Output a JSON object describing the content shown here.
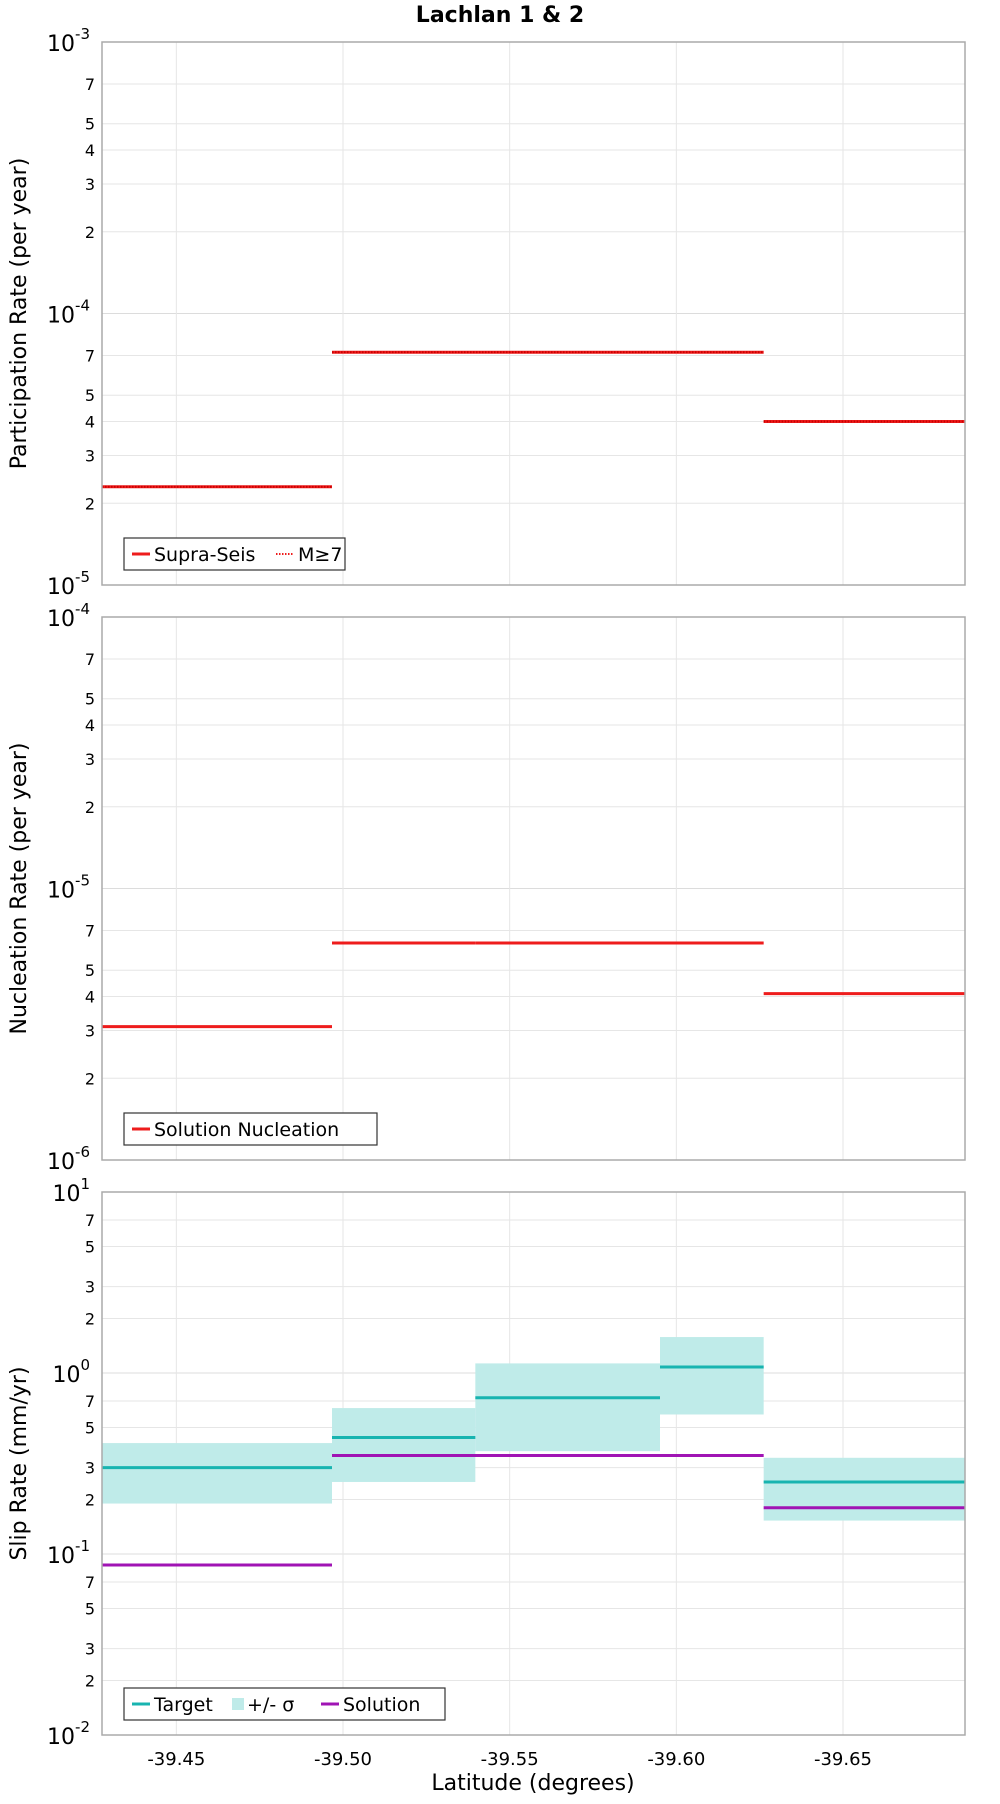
{
  "title": "Lachlan 1 & 2",
  "x_axis": {
    "label": "Latitude (degrees)",
    "range": [
      -39.4277,
      -39.6866
    ],
    "ticks": [
      -39.45,
      -39.5,
      -39.55,
      -39.6,
      -39.65
    ],
    "tick_labels": [
      "-39.45",
      "-39.50",
      "-39.55",
      "-39.60",
      "-39.65"
    ]
  },
  "colors": {
    "red": "#ee1c1c",
    "teal": "#18b4b0",
    "band": "#bfebe9",
    "purple": "#a014b4",
    "grid": "#e6e6e6",
    "frame": "#aaaaaa"
  },
  "chart_data": [
    {
      "type": "line",
      "style": "step",
      "panel": "participation",
      "ylabel": "Participation Rate (per year)",
      "yscale": "log",
      "ylim": [
        1e-05,
        0.001
      ],
      "decades": [
        {
          "base": "10",
          "exp": "-5",
          "value": 1e-05
        },
        {
          "base": "10",
          "exp": "-4",
          "value": 0.0001
        },
        {
          "base": "10",
          "exp": "-3",
          "value": 0.001
        }
      ],
      "minor_ticks": [
        {
          "label": "2",
          "value": 2e-05
        },
        {
          "label": "3",
          "value": 3e-05
        },
        {
          "label": "4",
          "value": 4e-05
        },
        {
          "label": "5",
          "value": 5e-05
        },
        {
          "label": "7",
          "value": 7e-05
        },
        {
          "label": "2",
          "value": 0.0002
        },
        {
          "label": "3",
          "value": 0.0003
        },
        {
          "label": "4",
          "value": 0.0004
        },
        {
          "label": "5",
          "value": 0.0005
        },
        {
          "label": "7",
          "value": 0.0007
        }
      ],
      "legend": {
        "entries": [
          {
            "name": "Supra-Seis",
            "style": "solid",
            "color": "#ee1c1c"
          },
          {
            "name": "M≥7",
            "style": "dotted",
            "color": "#ee1c1c"
          }
        ]
      },
      "series": [
        {
          "name": "Supra-Seis",
          "color": "#ee1c1c",
          "segments": [
            {
              "x0": -39.4277,
              "x1": -39.4967,
              "y": 2.3e-05
            },
            {
              "x0": -39.4967,
              "x1": -39.6262,
              "y": 7.2e-05
            },
            {
              "x0": -39.6262,
              "x1": -39.6866,
              "y": 4e-05
            }
          ]
        },
        {
          "name": "M≥7",
          "color": "#ee1c1c",
          "dotted": true,
          "segments": [
            {
              "x0": -39.4277,
              "x1": -39.4967,
              "y": 2.3e-05
            },
            {
              "x0": -39.4967,
              "x1": -39.6262,
              "y": 7.2e-05
            },
            {
              "x0": -39.6262,
              "x1": -39.6866,
              "y": 4e-05
            }
          ]
        }
      ]
    },
    {
      "type": "line",
      "style": "step",
      "panel": "nucleation",
      "ylabel": "Nucleation Rate (per year)",
      "yscale": "log",
      "ylim": [
        1e-06,
        0.0001
      ],
      "decades": [
        {
          "base": "10",
          "exp": "-6",
          "value": 1e-06
        },
        {
          "base": "10",
          "exp": "-5",
          "value": 1e-05
        },
        {
          "base": "10",
          "exp": "-4",
          "value": 0.0001
        }
      ],
      "minor_ticks": [
        {
          "label": "2",
          "value": 2e-06
        },
        {
          "label": "3",
          "value": 3e-06
        },
        {
          "label": "4",
          "value": 4e-06
        },
        {
          "label": "5",
          "value": 5e-06
        },
        {
          "label": "7",
          "value": 7e-06
        },
        {
          "label": "2",
          "value": 2e-05
        },
        {
          "label": "3",
          "value": 3e-05
        },
        {
          "label": "4",
          "value": 4e-05
        },
        {
          "label": "5",
          "value": 5e-05
        },
        {
          "label": "7",
          "value": 7e-05
        }
      ],
      "legend": {
        "entries": [
          {
            "name": "Solution Nucleation",
            "style": "solid",
            "color": "#ee1c1c"
          }
        ]
      },
      "series": [
        {
          "name": "Solution Nucleation",
          "color": "#ee1c1c",
          "segments": [
            {
              "x0": -39.4277,
              "x1": -39.4967,
              "y": 3.1e-06
            },
            {
              "x0": -39.4967,
              "x1": -39.5397,
              "y": 6.3e-06
            },
            {
              "x0": -39.5397,
              "x1": -39.5951,
              "y": 6.3e-06
            },
            {
              "x0": -39.5951,
              "x1": -39.6262,
              "y": 6.3e-06
            },
            {
              "x0": -39.6262,
              "x1": -39.6866,
              "y": 4.1e-06
            }
          ]
        }
      ]
    },
    {
      "type": "line",
      "style": "step",
      "panel": "slip",
      "ylabel": "Slip Rate (mm/yr)",
      "yscale": "log",
      "ylim": [
        0.01,
        10
      ],
      "decades": [
        {
          "base": "10",
          "exp": "-2",
          "value": 0.01
        },
        {
          "base": "10",
          "exp": "-1",
          "value": 0.1
        },
        {
          "base": "10",
          "exp": "0",
          "value": 1
        },
        {
          "base": "10",
          "exp": "1",
          "value": 10
        }
      ],
      "minor_ticks": [
        {
          "label": "2",
          "value": 0.02
        },
        {
          "label": "3",
          "value": 0.03
        },
        {
          "label": "5",
          "value": 0.05
        },
        {
          "label": "7",
          "value": 0.07
        },
        {
          "label": "2",
          "value": 0.2
        },
        {
          "label": "3",
          "value": 0.3
        },
        {
          "label": "5",
          "value": 0.5
        },
        {
          "label": "7",
          "value": 0.7
        },
        {
          "label": "2",
          "value": 2
        },
        {
          "label": "3",
          "value": 3
        },
        {
          "label": "5",
          "value": 5
        },
        {
          "label": "7",
          "value": 7
        }
      ],
      "legend": {
        "entries": [
          {
            "name": "Target",
            "style": "solid",
            "color": "#18b4b0"
          },
          {
            "name": "+/- σ",
            "style": "band",
            "color": "#bfebe9"
          },
          {
            "name": "Solution",
            "style": "solid",
            "color": "#a014b4"
          }
        ]
      },
      "bands": [
        {
          "x0": -39.4277,
          "x1": -39.4967,
          "low": 0.19,
          "high": 0.41
        },
        {
          "x0": -39.4967,
          "x1": -39.5397,
          "low": 0.25,
          "high": 0.64
        },
        {
          "x0": -39.5397,
          "x1": -39.5951,
          "low": 0.37,
          "high": 1.13
        },
        {
          "x0": -39.5951,
          "x1": -39.6262,
          "low": 0.59,
          "high": 1.58
        },
        {
          "x0": -39.6262,
          "x1": -39.6866,
          "low": 0.153,
          "high": 0.34
        }
      ],
      "series": [
        {
          "name": "Target",
          "color": "#18b4b0",
          "segments": [
            {
              "x0": -39.4277,
              "x1": -39.4967,
              "y": 0.3
            },
            {
              "x0": -39.4967,
              "x1": -39.5397,
              "y": 0.44
            },
            {
              "x0": -39.5397,
              "x1": -39.5951,
              "y": 0.73
            },
            {
              "x0": -39.5951,
              "x1": -39.6262,
              "y": 1.08
            },
            {
              "x0": -39.6262,
              "x1": -39.6866,
              "y": 0.25
            }
          ]
        },
        {
          "name": "Solution",
          "color": "#a014b4",
          "segments": [
            {
              "x0": -39.4277,
              "x1": -39.4967,
              "y": 0.087
            },
            {
              "x0": -39.4967,
              "x1": -39.6262,
              "y": 0.35
            },
            {
              "x0": -39.6262,
              "x1": -39.6866,
              "y": 0.18
            }
          ]
        }
      ]
    }
  ]
}
